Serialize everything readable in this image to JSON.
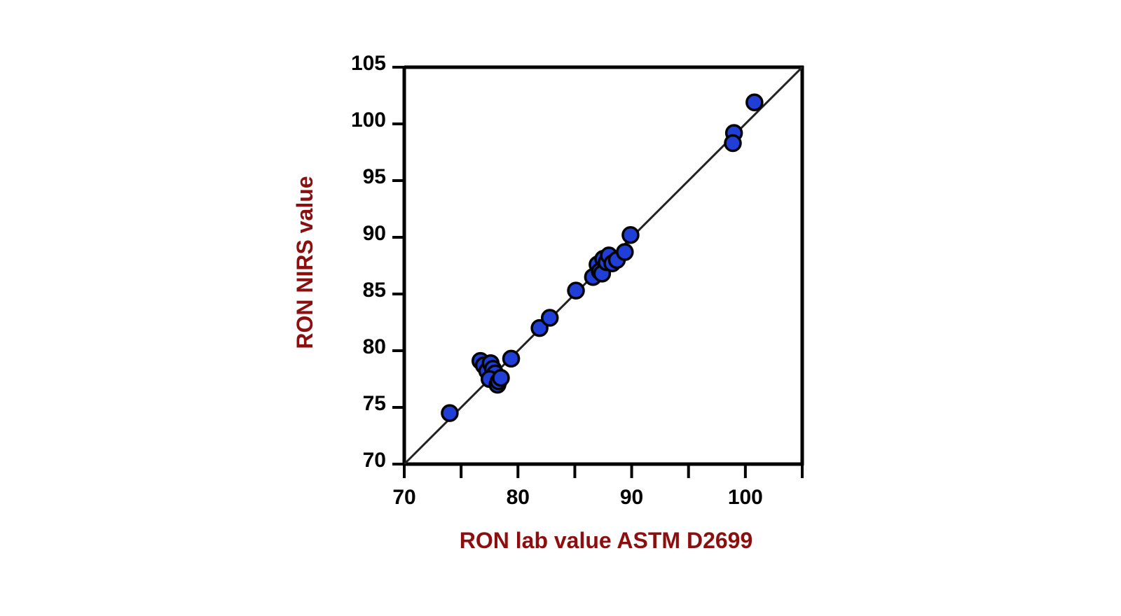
{
  "chart_data": {
    "type": "scatter",
    "title": "",
    "xlabel": "RON lab value ASTM D2699",
    "ylabel": "RON NIRS value",
    "xlim": [
      70,
      105
    ],
    "ylim": [
      70,
      105
    ],
    "x_ticks": [
      70,
      80,
      90,
      100
    ],
    "x_minor_ticks": [
      75,
      85,
      95,
      105
    ],
    "y_ticks": [
      70,
      75,
      80,
      85,
      90,
      95,
      100,
      105
    ],
    "grid": false,
    "legend": "none",
    "reference_line": {
      "x": [
        70,
        105
      ],
      "y": [
        70,
        105
      ]
    },
    "colors": {
      "point_fill": "#1f3fd6",
      "point_stroke": "#000000",
      "axis_title": "#8b0f0f",
      "line": "#222222"
    },
    "series": [
      {
        "points": [
          {
            "x": 74.0,
            "y": 74.5
          },
          {
            "x": 76.7,
            "y": 79.1
          },
          {
            "x": 77.0,
            "y": 78.7
          },
          {
            "x": 77.3,
            "y": 78.2
          },
          {
            "x": 77.6,
            "y": 78.9
          },
          {
            "x": 77.8,
            "y": 78.4
          },
          {
            "x": 78.0,
            "y": 78.0
          },
          {
            "x": 77.5,
            "y": 77.5
          },
          {
            "x": 78.2,
            "y": 77.0
          },
          {
            "x": 78.3,
            "y": 77.3
          },
          {
            "x": 78.5,
            "y": 77.6
          },
          {
            "x": 79.4,
            "y": 79.3
          },
          {
            "x": 81.9,
            "y": 82.0
          },
          {
            "x": 82.8,
            "y": 82.9
          },
          {
            "x": 85.1,
            "y": 85.3
          },
          {
            "x": 86.6,
            "y": 86.5
          },
          {
            "x": 87.0,
            "y": 87.6
          },
          {
            "x": 87.2,
            "y": 87.0
          },
          {
            "x": 87.4,
            "y": 86.8
          },
          {
            "x": 87.5,
            "y": 88.1
          },
          {
            "x": 87.8,
            "y": 87.8
          },
          {
            "x": 88.0,
            "y": 88.4
          },
          {
            "x": 88.3,
            "y": 87.7
          },
          {
            "x": 88.7,
            "y": 88.0
          },
          {
            "x": 89.4,
            "y": 88.7
          },
          {
            "x": 89.9,
            "y": 90.2
          },
          {
            "x": 99.0,
            "y": 99.2
          },
          {
            "x": 98.9,
            "y": 98.3
          },
          {
            "x": 100.8,
            "y": 101.9
          }
        ]
      }
    ]
  }
}
